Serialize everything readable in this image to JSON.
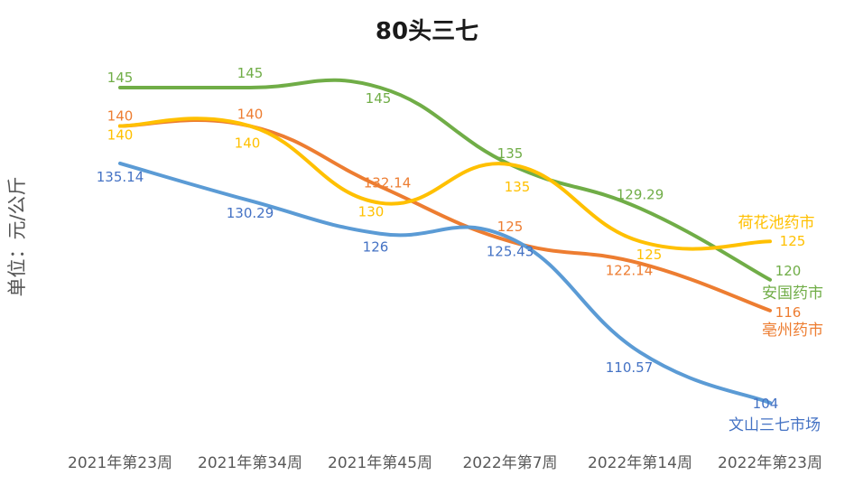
{
  "chart_data": {
    "type": "line",
    "title": "80头三七",
    "ylabel": "单位：元/公斤",
    "xlabel": "",
    "categories": [
      "2021年第23周",
      "2021年第34周",
      "2021年第45周",
      "2022年第7周",
      "2022年第14周",
      "2022年第23周"
    ],
    "ylim": [
      100,
      148
    ],
    "grid": false,
    "legend": "inline-right",
    "series": [
      {
        "name": "安国药市",
        "color": "#70ad47",
        "values": [
          145,
          145,
          145,
          135,
          129.29,
          120
        ],
        "labels": [
          "145",
          "145",
          "145",
          "135",
          "129.29",
          "120"
        ]
      },
      {
        "name": "亳州药市",
        "color": "#ed7d31",
        "values": [
          140,
          140,
          132.14,
          125,
          122.14,
          116
        ],
        "labels": [
          "140",
          "140",
          "132.14",
          "125",
          "122.14",
          "116"
        ]
      },
      {
        "name": "荷花池药市",
        "color": "#ffc000",
        "values": [
          140,
          140,
          130,
          135,
          125,
          125
        ],
        "labels": [
          "140",
          "140",
          "130",
          "135",
          "125",
          "125"
        ]
      },
      {
        "name": "文山三七市场",
        "color": "#5b9bd5",
        "values": [
          135.14,
          130.29,
          126,
          125.43,
          110.57,
          104
        ],
        "labels": [
          "135.14",
          "130.29",
          "126",
          "125.43",
          "110.57",
          "104"
        ]
      }
    ]
  }
}
